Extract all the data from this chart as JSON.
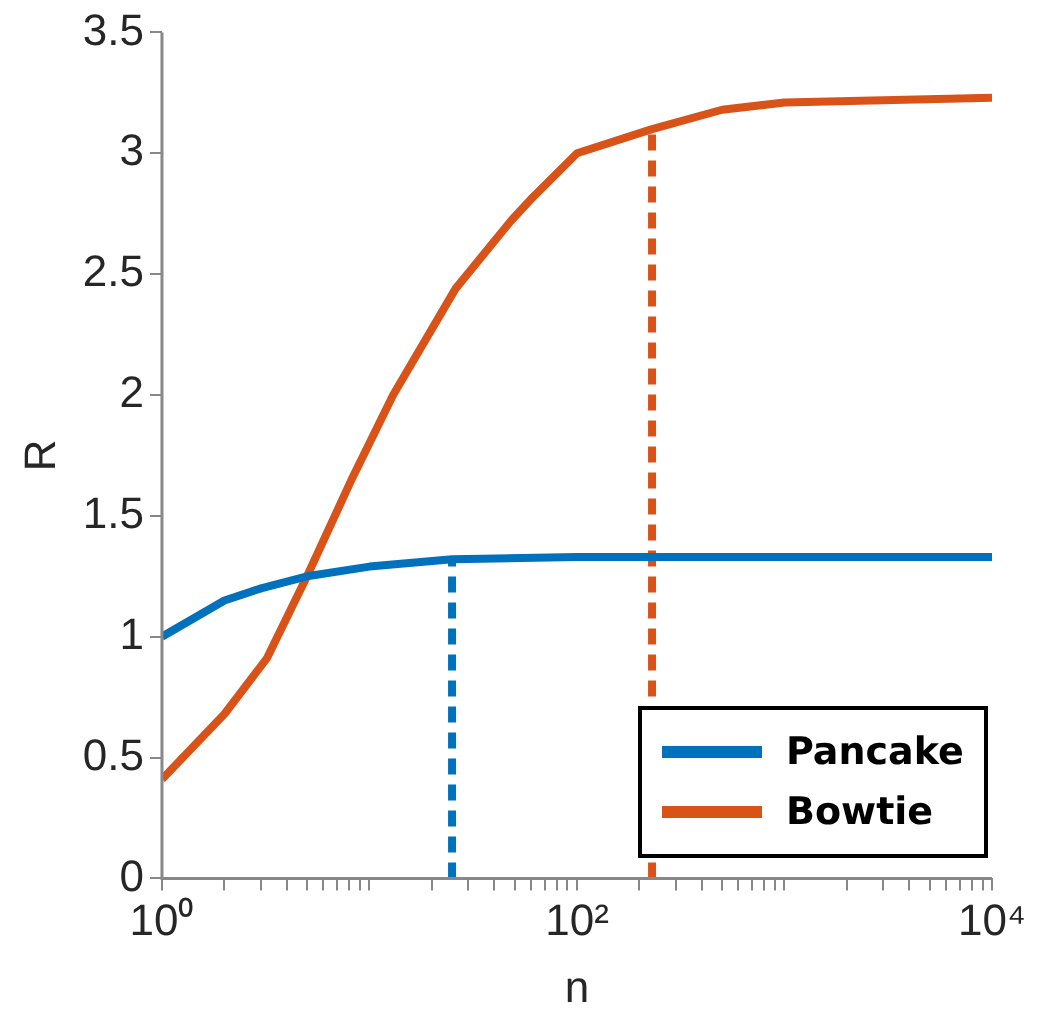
{
  "chart_data": {
    "type": "line",
    "xlabel": "n",
    "ylabel": "R",
    "log": "x",
    "grid": false,
    "legend": "bottom right",
    "marker": "none",
    "line_style": "solid",
    "xlim": [
      1,
      10000
    ],
    "xticks": [
      {
        "value": 1,
        "label": "10⁰"
      },
      {
        "value": 2,
        "label": null
      },
      {
        "value": 3,
        "label": null
      },
      {
        "value": 4,
        "label": null
      },
      {
        "value": 5,
        "label": null
      },
      {
        "value": 6,
        "label": null
      },
      {
        "value": 7,
        "label": null
      },
      {
        "value": 8,
        "label": null
      },
      {
        "value": 9,
        "label": null
      },
      {
        "value": 10,
        "label": null
      },
      {
        "value": 20,
        "label": null
      },
      {
        "value": 30,
        "label": null
      },
      {
        "value": 40,
        "label": null
      },
      {
        "value": 50,
        "label": null
      },
      {
        "value": 60,
        "label": null
      },
      {
        "value": 70,
        "label": null
      },
      {
        "value": 80,
        "label": null
      },
      {
        "value": 90,
        "label": null
      },
      {
        "value": 100,
        "label": "10²"
      },
      {
        "value": 200,
        "label": null
      },
      {
        "value": 300,
        "label": null
      },
      {
        "value": 400,
        "label": null
      },
      {
        "value": 500,
        "label": null
      },
      {
        "value": 600,
        "label": null
      },
      {
        "value": 700,
        "label": null
      },
      {
        "value": 800,
        "label": null
      },
      {
        "value": 900,
        "label": null
      },
      {
        "value": 1000,
        "label": null
      },
      {
        "value": 2000,
        "label": null
      },
      {
        "value": 3000,
        "label": null
      },
      {
        "value": 4000,
        "label": null
      },
      {
        "value": 5000,
        "label": null
      },
      {
        "value": 6000,
        "label": null
      },
      {
        "value": 7000,
        "label": null
      },
      {
        "value": 8000,
        "label": null
      },
      {
        "value": 9000,
        "label": null
      },
      {
        "value": 10000,
        "label": "10⁴"
      }
    ],
    "ylim": [
      0,
      3.5
    ],
    "yticks": [
      0,
      0.5,
      1,
      1.5,
      2,
      2.5,
      3,
      3.5
    ],
    "series": [
      {
        "name": "Pancake",
        "color": "#0072bd",
        "x": [
          1,
          2,
          3,
          5,
          10,
          25,
          100,
          1000,
          10000
        ],
        "values": [
          1.0,
          1.15,
          1.2,
          1.25,
          1.29,
          1.32,
          1.33,
          1.33,
          1.33
        ]
      },
      {
        "name": "Bowtie",
        "color": "#d95319",
        "x": [
          1,
          2,
          3.2,
          5,
          8.3,
          13,
          26,
          48,
          60,
          100,
          230,
          500,
          1000,
          10000
        ],
        "values": [
          0.41,
          0.68,
          0.91,
          1.25,
          1.66,
          2.0,
          2.44,
          2.72,
          2.81,
          3.0,
          3.1,
          3.18,
          3.21,
          3.23
        ]
      },
      {
        "color": "#0072bd",
        "line_style": "dashed",
        "x": [
          25,
          25
        ],
        "values": [
          0,
          1.32
        ]
      },
      {
        "color": "#d95319",
        "line_style": "dashed",
        "x": [
          230,
          230
        ],
        "values": [
          0,
          3.1
        ]
      }
    ]
  }
}
